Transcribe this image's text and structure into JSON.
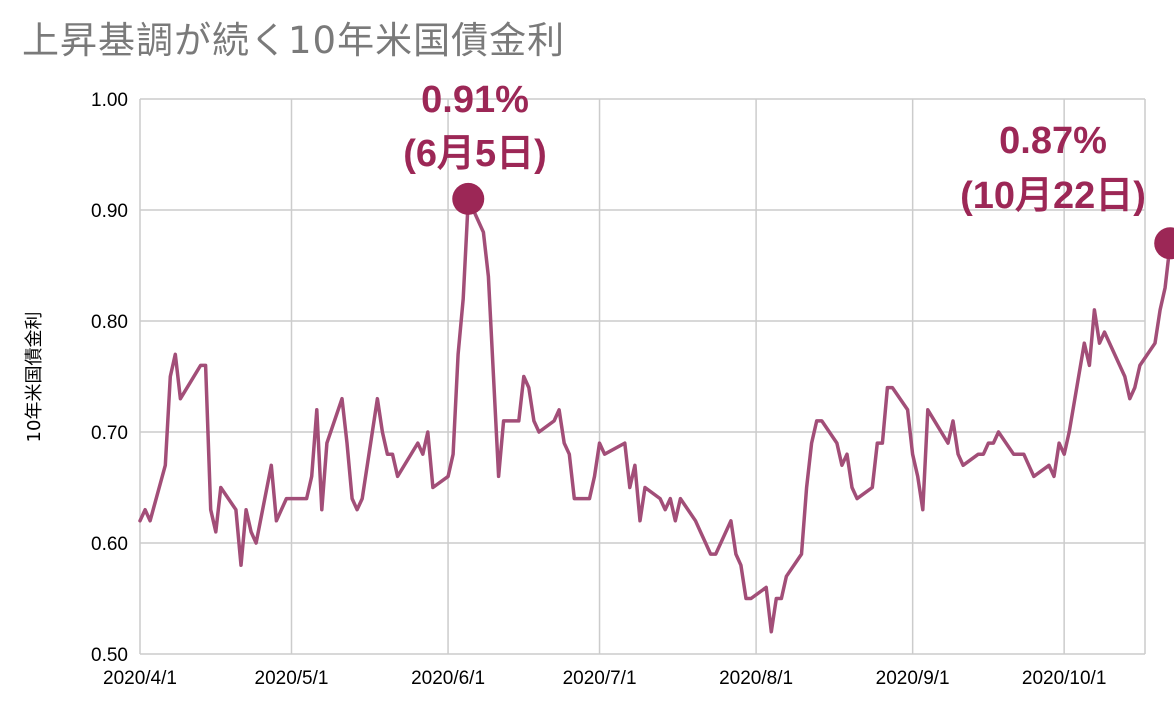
{
  "title": "上昇基調が続く10年米国債金利",
  "colors": {
    "line": "#a24e78",
    "marker": "#9c2756",
    "annotation": "#9c2756",
    "grid": "#cccccc"
  },
  "chart_data": {
    "type": "line",
    "title": "上昇基調が続く10年米国債金利",
    "xlabel": "",
    "ylabel": "10年米国債金利",
    "ylim": [
      0.5,
      1.0
    ],
    "yticks": [
      "1.00",
      "0.90",
      "0.80",
      "0.70",
      "0.60",
      "0.50"
    ],
    "xlim": [
      "2020-04-01",
      "2020-10-22"
    ],
    "xticks": [
      {
        "date": "2020-04-01",
        "label": "2020/4/1"
      },
      {
        "date": "2020-05-01",
        "label": "2020/5/1"
      },
      {
        "date": "2020-06-01",
        "label": "2020/6/1"
      },
      {
        "date": "2020-07-01",
        "label": "2020/7/1"
      },
      {
        "date": "2020-08-01",
        "label": "2020/8/1"
      },
      {
        "date": "2020-09-01",
        "label": "2020/9/1"
      },
      {
        "date": "2020-10-01",
        "label": "2020/10/1"
      }
    ],
    "grid": true,
    "legend": "none",
    "series": [
      {
        "points": [
          [
            "2020-04-01",
            0.62
          ],
          [
            "2020-04-02",
            0.63
          ],
          [
            "2020-04-03",
            0.62
          ],
          [
            "2020-04-06",
            0.67
          ],
          [
            "2020-04-07",
            0.75
          ],
          [
            "2020-04-08",
            0.77
          ],
          [
            "2020-04-09",
            0.73
          ],
          [
            "2020-04-13",
            0.76
          ],
          [
            "2020-04-14",
            0.76
          ],
          [
            "2020-04-15",
            0.63
          ],
          [
            "2020-04-16",
            0.61
          ],
          [
            "2020-04-17",
            0.65
          ],
          [
            "2020-04-20",
            0.63
          ],
          [
            "2020-04-21",
            0.58
          ],
          [
            "2020-04-22",
            0.63
          ],
          [
            "2020-04-23",
            0.61
          ],
          [
            "2020-04-24",
            0.6
          ],
          [
            "2020-04-27",
            0.67
          ],
          [
            "2020-04-28",
            0.62
          ],
          [
            "2020-04-29",
            0.63
          ],
          [
            "2020-04-30",
            0.64
          ],
          [
            "2020-05-01",
            0.64
          ],
          [
            "2020-05-04",
            0.64
          ],
          [
            "2020-05-05",
            0.66
          ],
          [
            "2020-05-06",
            0.72
          ],
          [
            "2020-05-07",
            0.63
          ],
          [
            "2020-05-08",
            0.69
          ],
          [
            "2020-05-11",
            0.73
          ],
          [
            "2020-05-12",
            0.69
          ],
          [
            "2020-05-13",
            0.64
          ],
          [
            "2020-05-14",
            0.63
          ],
          [
            "2020-05-15",
            0.64
          ],
          [
            "2020-05-18",
            0.73
          ],
          [
            "2020-05-19",
            0.7
          ],
          [
            "2020-05-20",
            0.68
          ],
          [
            "2020-05-21",
            0.68
          ],
          [
            "2020-05-22",
            0.66
          ],
          [
            "2020-05-26",
            0.69
          ],
          [
            "2020-05-27",
            0.68
          ],
          [
            "2020-05-28",
            0.7
          ],
          [
            "2020-05-29",
            0.65
          ],
          [
            "2020-06-01",
            0.66
          ],
          [
            "2020-06-02",
            0.68
          ],
          [
            "2020-06-03",
            0.77
          ],
          [
            "2020-06-04",
            0.82
          ],
          [
            "2020-06-05",
            0.91
          ],
          [
            "2020-06-08",
            0.88
          ],
          [
            "2020-06-09",
            0.84
          ],
          [
            "2020-06-10",
            0.75
          ],
          [
            "2020-06-11",
            0.66
          ],
          [
            "2020-06-12",
            0.71
          ],
          [
            "2020-06-15",
            0.71
          ],
          [
            "2020-06-16",
            0.75
          ],
          [
            "2020-06-17",
            0.74
          ],
          [
            "2020-06-18",
            0.71
          ],
          [
            "2020-06-19",
            0.7
          ],
          [
            "2020-06-22",
            0.71
          ],
          [
            "2020-06-23",
            0.72
          ],
          [
            "2020-06-24",
            0.69
          ],
          [
            "2020-06-25",
            0.68
          ],
          [
            "2020-06-26",
            0.64
          ],
          [
            "2020-06-29",
            0.64
          ],
          [
            "2020-06-30",
            0.66
          ],
          [
            "2020-07-01",
            0.69
          ],
          [
            "2020-07-02",
            0.68
          ],
          [
            "2020-07-06",
            0.69
          ],
          [
            "2020-07-07",
            0.65
          ],
          [
            "2020-07-08",
            0.67
          ],
          [
            "2020-07-09",
            0.62
          ],
          [
            "2020-07-10",
            0.65
          ],
          [
            "2020-07-13",
            0.64
          ],
          [
            "2020-07-14",
            0.63
          ],
          [
            "2020-07-15",
            0.64
          ],
          [
            "2020-07-16",
            0.62
          ],
          [
            "2020-07-17",
            0.64
          ],
          [
            "2020-07-20",
            0.62
          ],
          [
            "2020-07-21",
            0.61
          ],
          [
            "2020-07-22",
            0.6
          ],
          [
            "2020-07-23",
            0.59
          ],
          [
            "2020-07-24",
            0.59
          ],
          [
            "2020-07-27",
            0.62
          ],
          [
            "2020-07-28",
            0.59
          ],
          [
            "2020-07-29",
            0.58
          ],
          [
            "2020-07-30",
            0.55
          ],
          [
            "2020-07-31",
            0.55
          ],
          [
            "2020-08-03",
            0.56
          ],
          [
            "2020-08-04",
            0.52
          ],
          [
            "2020-08-05",
            0.55
          ],
          [
            "2020-08-06",
            0.55
          ],
          [
            "2020-08-07",
            0.57
          ],
          [
            "2020-08-10",
            0.59
          ],
          [
            "2020-08-11",
            0.65
          ],
          [
            "2020-08-12",
            0.69
          ],
          [
            "2020-08-13",
            0.71
          ],
          [
            "2020-08-14",
            0.71
          ],
          [
            "2020-08-17",
            0.69
          ],
          [
            "2020-08-18",
            0.67
          ],
          [
            "2020-08-19",
            0.68
          ],
          [
            "2020-08-20",
            0.65
          ],
          [
            "2020-08-21",
            0.64
          ],
          [
            "2020-08-24",
            0.65
          ],
          [
            "2020-08-25",
            0.69
          ],
          [
            "2020-08-26",
            0.69
          ],
          [
            "2020-08-27",
            0.74
          ],
          [
            "2020-08-28",
            0.74
          ],
          [
            "2020-08-31",
            0.72
          ],
          [
            "2020-09-01",
            0.68
          ],
          [
            "2020-09-02",
            0.66
          ],
          [
            "2020-09-03",
            0.63
          ],
          [
            "2020-09-04",
            0.72
          ],
          [
            "2020-09-08",
            0.69
          ],
          [
            "2020-09-09",
            0.71
          ],
          [
            "2020-09-10",
            0.68
          ],
          [
            "2020-09-11",
            0.67
          ],
          [
            "2020-09-14",
            0.68
          ],
          [
            "2020-09-15",
            0.68
          ],
          [
            "2020-09-16",
            0.69
          ],
          [
            "2020-09-17",
            0.69
          ],
          [
            "2020-09-18",
            0.7
          ],
          [
            "2020-09-21",
            0.68
          ],
          [
            "2020-09-22",
            0.68
          ],
          [
            "2020-09-23",
            0.68
          ],
          [
            "2020-09-24",
            0.67
          ],
          [
            "2020-09-25",
            0.66
          ],
          [
            "2020-09-28",
            0.67
          ],
          [
            "2020-09-29",
            0.66
          ],
          [
            "2020-09-30",
            0.69
          ],
          [
            "2020-10-01",
            0.68
          ],
          [
            "2020-10-02",
            0.7
          ],
          [
            "2020-10-05",
            0.78
          ],
          [
            "2020-10-06",
            0.76
          ],
          [
            "2020-10-07",
            0.81
          ],
          [
            "2020-10-08",
            0.78
          ],
          [
            "2020-10-09",
            0.79
          ],
          [
            "2020-10-13",
            0.75
          ],
          [
            "2020-10-14",
            0.73
          ],
          [
            "2020-10-15",
            0.74
          ],
          [
            "2020-10-16",
            0.76
          ],
          [
            "2020-10-19",
            0.78
          ],
          [
            "2020-10-20",
            0.81
          ],
          [
            "2020-10-21",
            0.83
          ],
          [
            "2020-10-22",
            0.87
          ]
        ]
      }
    ],
    "annotations": [
      {
        "date": "2020-06-05",
        "value": 0.91,
        "line1": "0.91%",
        "line2": "(6月5日)"
      },
      {
        "date": "2020-10-22",
        "value": 0.87,
        "line1": "0.87%",
        "line2": "(10月22日)"
      }
    ]
  }
}
